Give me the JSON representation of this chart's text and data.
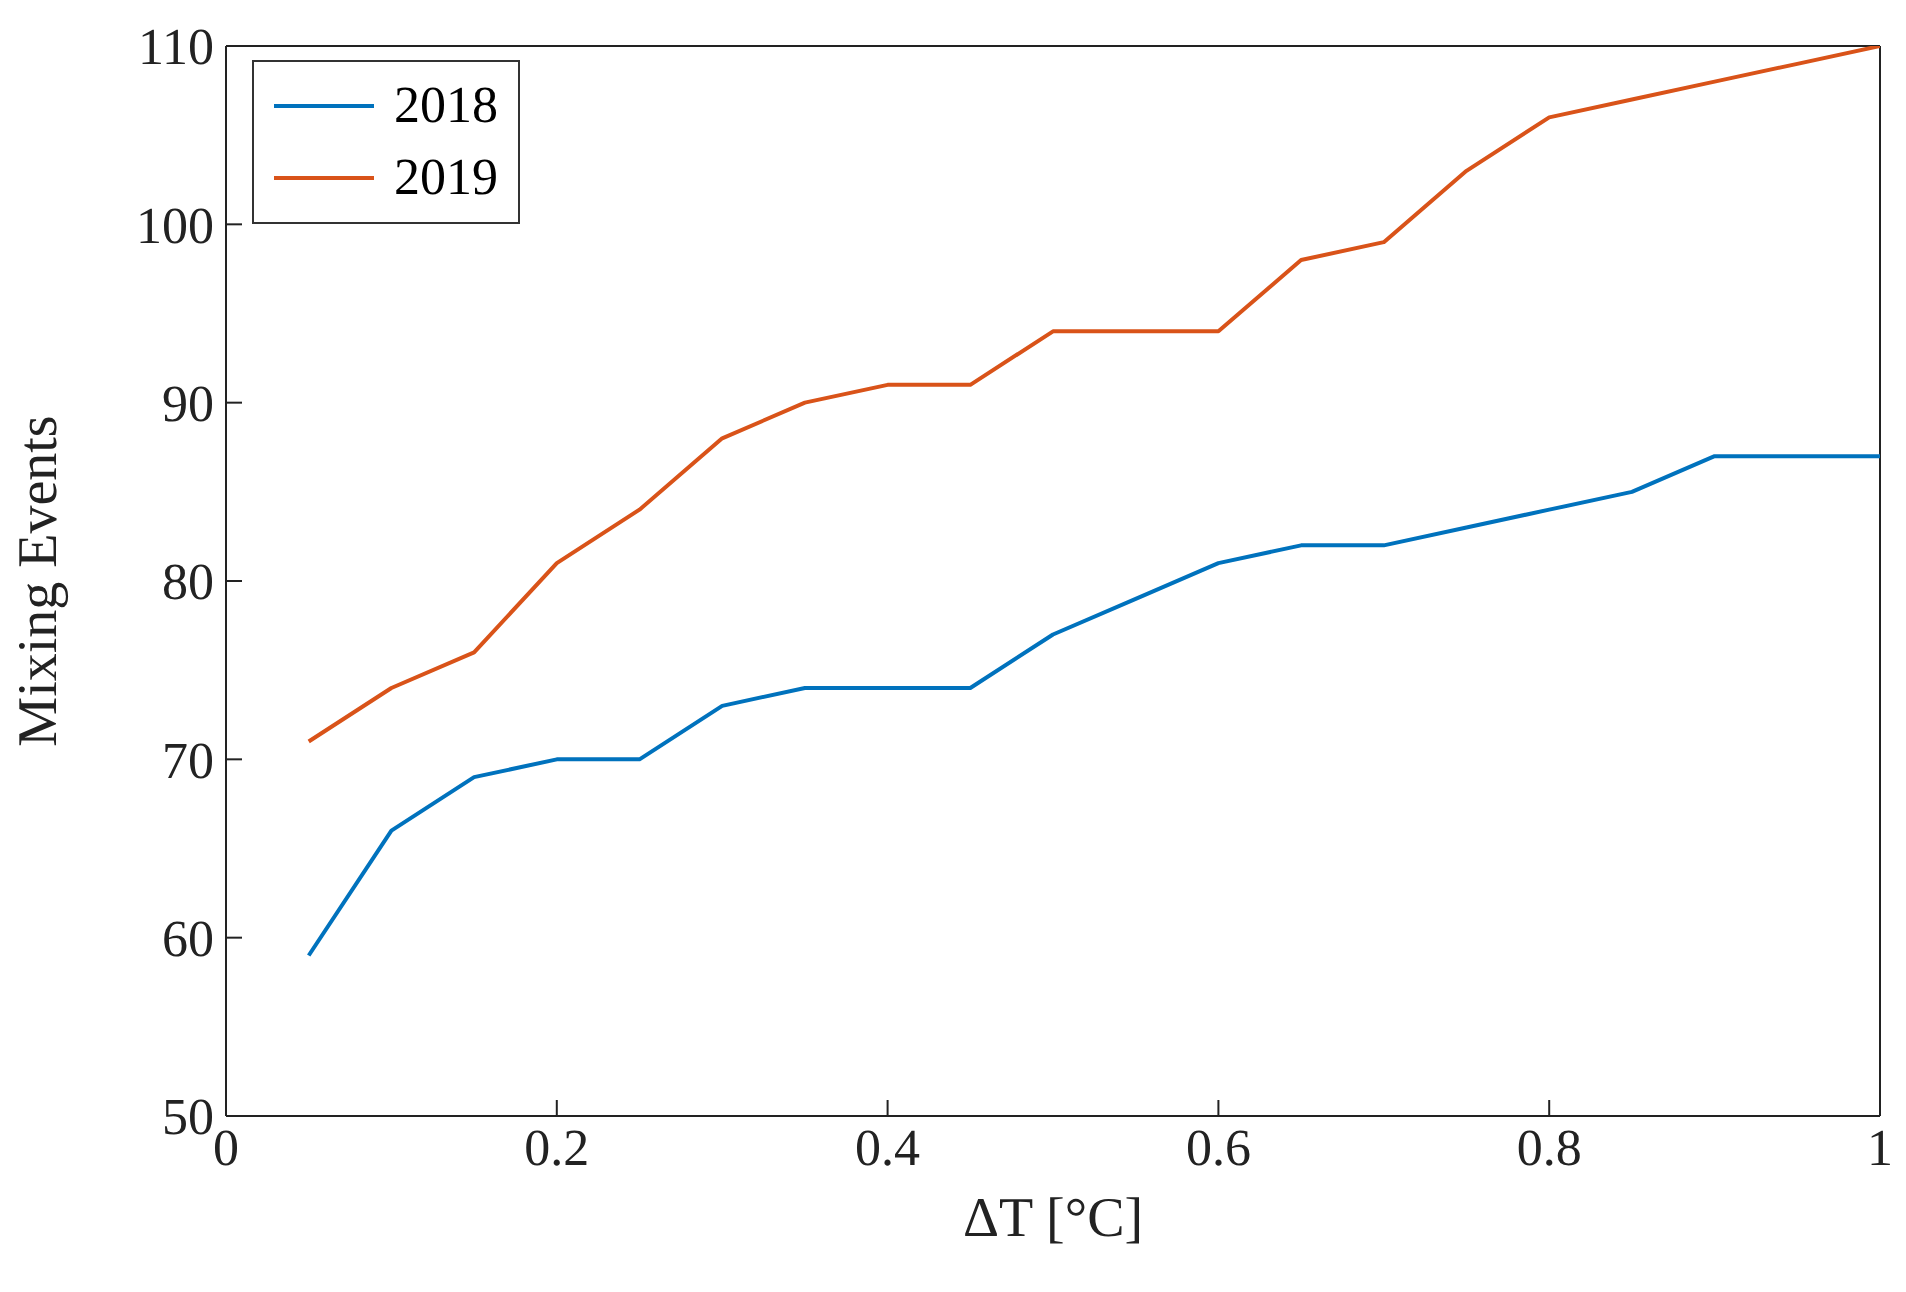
{
  "chart_data": {
    "type": "line",
    "xlabel": "ΔT [°C]",
    "ylabel": "Mixing Events",
    "x": [
      0.05,
      0.1,
      0.15,
      0.2,
      0.25,
      0.3,
      0.35,
      0.4,
      0.45,
      0.5,
      0.55,
      0.6,
      0.65,
      0.7,
      0.75,
      0.8,
      0.85,
      0.9,
      0.95,
      1
    ],
    "series": [
      {
        "name": "2018",
        "color": "#0072bd",
        "values": [
          59,
          66,
          69,
          70,
          70,
          73,
          74,
          74,
          74,
          77,
          79,
          81,
          82,
          82,
          83,
          84,
          85,
          87,
          87,
          87
        ]
      },
      {
        "name": "2019",
        "color": "#d95319",
        "values": [
          71,
          74,
          76,
          81,
          84,
          88,
          90,
          91,
          91,
          94,
          94,
          94,
          98,
          99,
          103,
          106,
          107,
          108,
          109,
          110
        ]
      }
    ],
    "xlim": [
      0,
      1
    ],
    "xticks": [
      0,
      0.2,
      0.4,
      0.6,
      0.8,
      1
    ],
    "ylim": [
      50,
      110
    ],
    "yticks": [
      50,
      60,
      70,
      80,
      90,
      100,
      110
    ],
    "grid": false,
    "legend": "top left",
    "marker": "none",
    "line_style": "solid"
  }
}
